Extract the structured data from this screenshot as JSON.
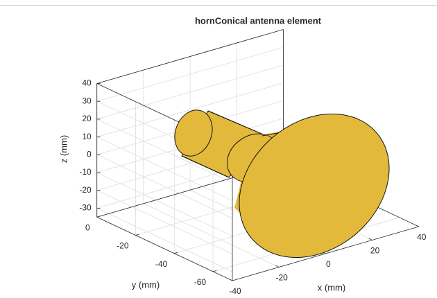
{
  "chart_data": {
    "type": "surface3d",
    "title": "hornConical antenna element",
    "xlabel": "x (mm)",
    "ylabel": "y (mm)",
    "zlabel": "z (mm)",
    "xlim": [
      -40,
      40
    ],
    "ylim": [
      -70,
      0
    ],
    "zlim": [
      -35,
      40
    ],
    "xticks": [
      -40,
      -20,
      0,
      20,
      40
    ],
    "yticks": [
      -60,
      -40,
      -20,
      0
    ],
    "zticks": [
      -30,
      -20,
      -10,
      0,
      10,
      20,
      30,
      40
    ],
    "grid": true,
    "color": "#e2b93b"
  }
}
